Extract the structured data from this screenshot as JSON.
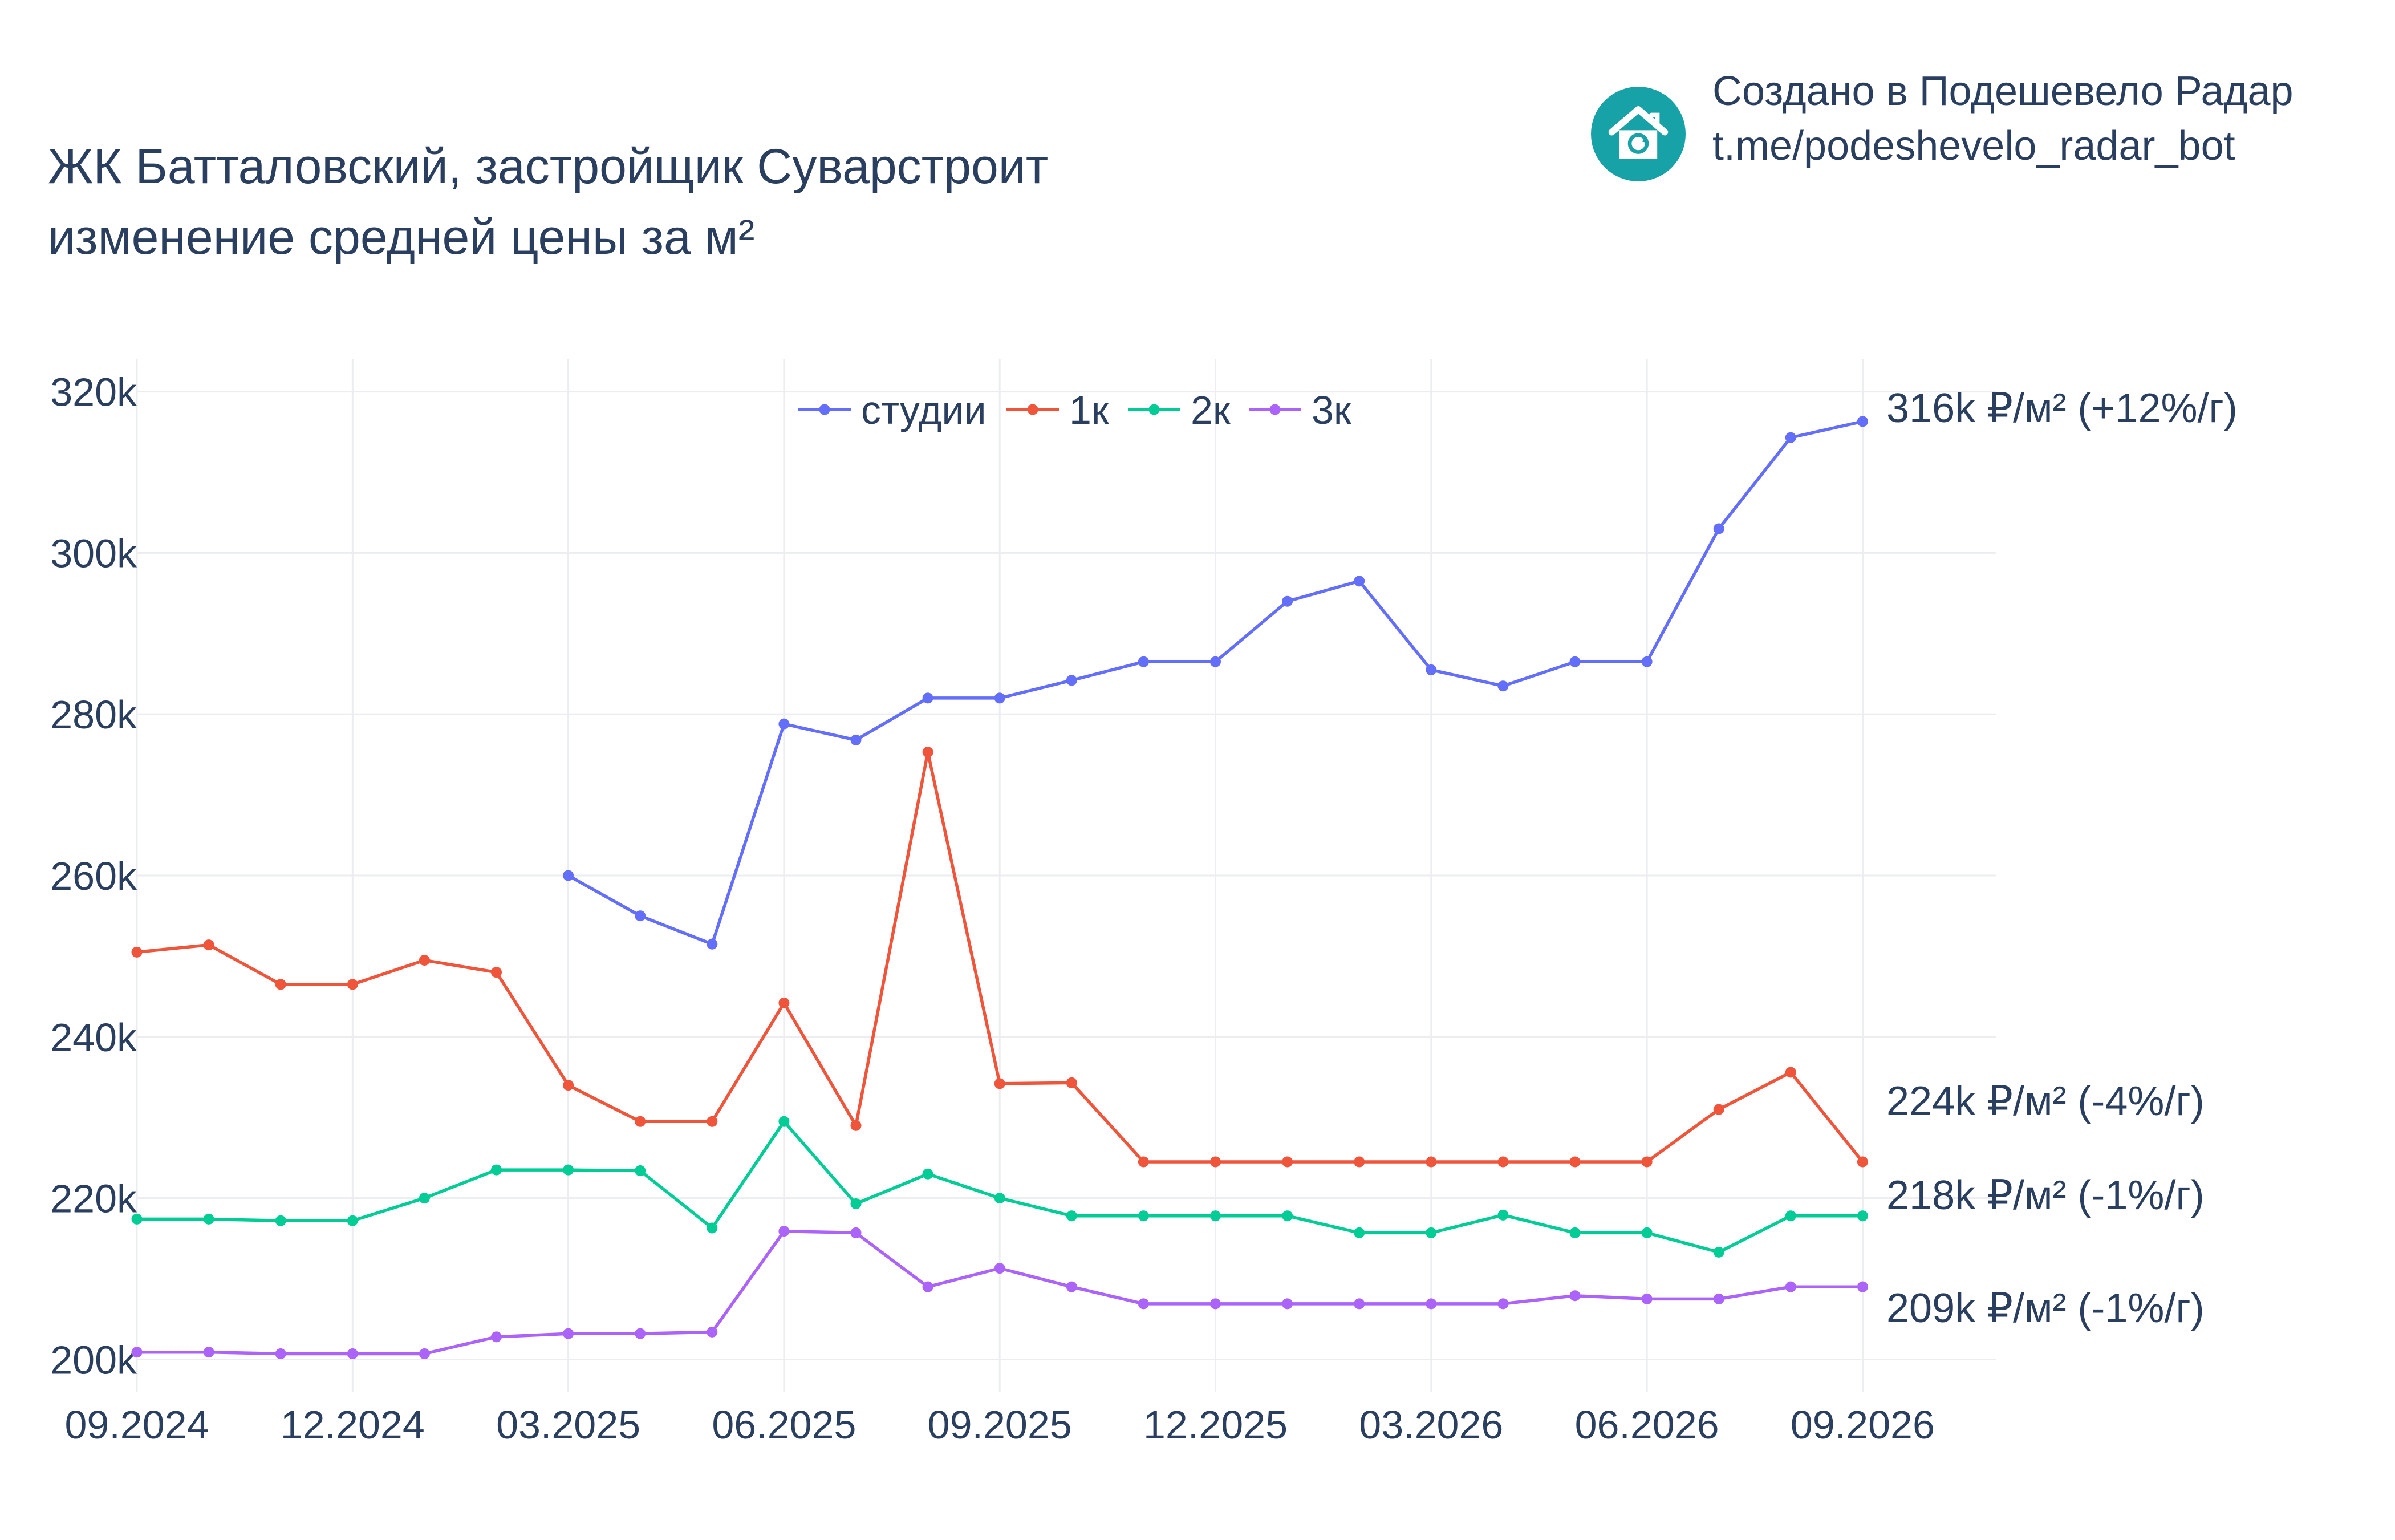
{
  "title": {
    "line1": "ЖК Батталовский, застройщик Суварстроит",
    "line2": "изменение средней цены за м²"
  },
  "brand": {
    "line1": "Создано в Подешевело Радар",
    "line2": "t.me/podeshevelo_radar_bot",
    "icon": "house-refresh-icon",
    "color": "#17a2a8"
  },
  "chart_data": {
    "type": "line",
    "x": [
      "2024-09",
      "2024-10",
      "2024-11",
      "2024-12",
      "2025-01",
      "2025-02",
      "2025-03",
      "2025-04",
      "2025-05",
      "2025-06",
      "2025-07",
      "2025-08",
      "2025-09",
      "2025-10",
      "2025-11",
      "2025-12",
      "2026-01",
      "2026-02",
      "2026-03",
      "2026-04",
      "2026-05",
      "2026-06",
      "2026-07",
      "2026-08",
      "2026-09"
    ],
    "x_tick_labels": [
      "09.2024",
      "12.2024",
      "03.2025",
      "06.2025",
      "09.2025",
      "12.2025",
      "03.2026",
      "06.2026",
      "09.2026"
    ],
    "x_tick_positions": [
      "2024-09",
      "2024-12",
      "2025-03",
      "2025-06",
      "2025-09",
      "2025-12",
      "2026-03",
      "2026-06",
      "2026-09"
    ],
    "ylim": [
      196000,
      324000
    ],
    "y_ticks": [
      200000,
      220000,
      240000,
      260000,
      280000,
      300000,
      320000
    ],
    "y_tick_labels": [
      "200k",
      "220k",
      "240k",
      "260k",
      "280k",
      "300k",
      "320k"
    ],
    "grid": true,
    "legend_position": "top-center",
    "series": [
      {
        "name": "студии",
        "color": "#636efa",
        "values": [
          null,
          null,
          null,
          null,
          null,
          null,
          260000,
          255000,
          251500,
          278800,
          276800,
          282000,
          282000,
          284200,
          286500,
          286500,
          294000,
          296500,
          285500,
          283500,
          286500,
          286500,
          303000,
          314300,
          316300
        ],
        "end_label": "316k ₽/м² (+12%/г)"
      },
      {
        "name": "1к",
        "color": "#ef553b",
        "values": [
          250500,
          251400,
          246500,
          246500,
          249500,
          248000,
          234000,
          229500,
          229500,
          244200,
          229000,
          275300,
          234200,
          234300,
          224500,
          224500,
          224500,
          224500,
          224500,
          224500,
          224500,
          224500,
          231000,
          235600,
          224500
        ],
        "end_label": "224k ₽/м² (-4%/г)"
      },
      {
        "name": "2к",
        "color": "#00cc96",
        "values": [
          217400,
          217400,
          217200,
          217200,
          220000,
          223500,
          223500,
          223400,
          216300,
          229500,
          219300,
          223000,
          220000,
          217800,
          217800,
          217800,
          217800,
          215700,
          215700,
          217900,
          215700,
          215700,
          213300,
          217800,
          217800
        ],
        "end_label": "218k ₽/м² (-1%/г)"
      },
      {
        "name": "3к",
        "color": "#ab63fa",
        "values": [
          200900,
          200900,
          200700,
          200700,
          200700,
          202800,
          203200,
          203200,
          203400,
          215900,
          215700,
          209000,
          211300,
          209000,
          206900,
          206900,
          206900,
          206900,
          206900,
          206900,
          207900,
          207500,
          207500,
          209000,
          209000
        ],
        "end_label": "209k ₽/м² (-1%/г)"
      }
    ]
  }
}
